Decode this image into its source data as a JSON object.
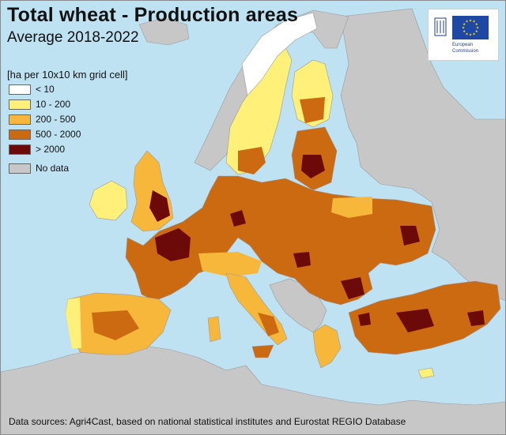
{
  "title": "Total wheat - Production areas",
  "subtitle": "Average 2018-2022",
  "legend": {
    "title": "[ha per 10x10 km grid cell]",
    "items": [
      {
        "label": "< 10",
        "color": "#ffffff"
      },
      {
        "label": "10 - 200",
        "color": "#fff07a"
      },
      {
        "label": "200 - 500",
        "color": "#f6b73a"
      },
      {
        "label": "500 - 2000",
        "color": "#cc6a12"
      },
      {
        "label": "> 2000",
        "color": "#6b0a08"
      }
    ],
    "no_data": {
      "label": "No data",
      "color": "#c7c7c7"
    }
  },
  "logo": {
    "line1": "European",
    "line2": "Commission",
    "flag_color": "#1f47a4",
    "star_color": "#ffdd00"
  },
  "source": "Data sources: Agri4Cast, based on national statistical institutes and Eurostat REGIO Database",
  "colors": {
    "sea": "#bfe2f3",
    "no_data_land": "#c7c7c7",
    "border": "#8a8a8a"
  }
}
